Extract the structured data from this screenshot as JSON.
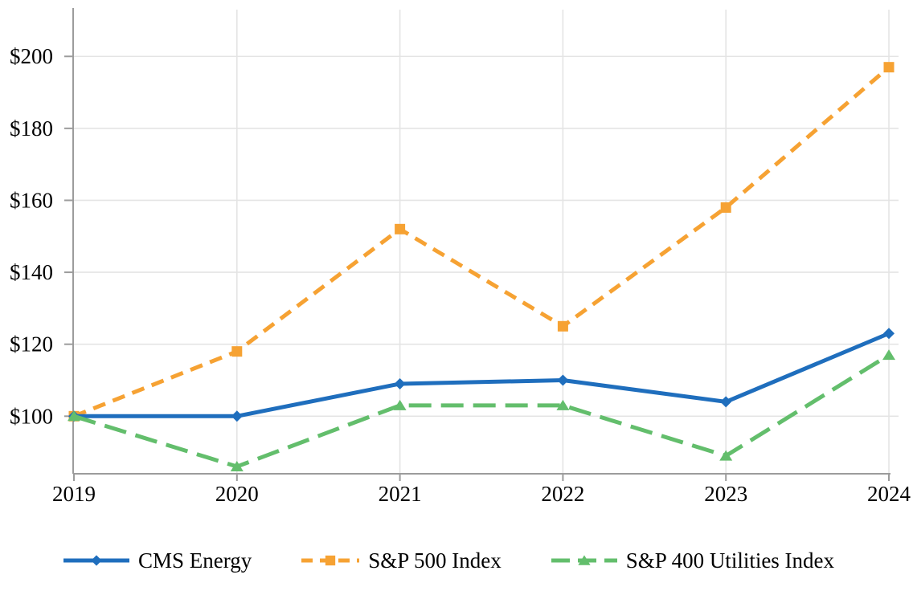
{
  "chart_data": {
    "type": "line",
    "title": "",
    "xlabel": "",
    "ylabel": "",
    "x_categories": [
      "2019",
      "2020",
      "2021",
      "2022",
      "2023",
      "2024"
    ],
    "series": [
      {
        "name": "CMS Energy",
        "values": [
          100,
          100,
          109,
          110,
          104,
          123
        ],
        "color": "#1F6EBD",
        "line_style": "solid",
        "marker": "diamond"
      },
      {
        "name": "S&P 500 Index",
        "values": [
          100,
          118,
          152,
          125,
          158,
          197
        ],
        "color": "#F6A233",
        "line_style": "dashed",
        "marker": "square"
      },
      {
        "name": "S&P 400 Utilities Index",
        "values": [
          100,
          86,
          103,
          103,
          89,
          117
        ],
        "color": "#63BE6C",
        "line_style": "long-dash",
        "marker": "triangle-up"
      }
    ],
    "y_ticks": [
      {
        "value": 100,
        "label": "$100"
      },
      {
        "value": 120,
        "label": "$120"
      },
      {
        "value": 140,
        "label": "$140"
      },
      {
        "value": 160,
        "label": "$160"
      },
      {
        "value": 180,
        "label": "$180"
      },
      {
        "value": 200,
        "label": "$200"
      }
    ],
    "ylim": [
      84,
      213
    ],
    "grid": true,
    "legend_position": "bottom",
    "axis_color": "#9C9C9C",
    "grid_color": "#E4E4E4",
    "text_color": "#000000",
    "background_color": "#FFFFFF"
  }
}
